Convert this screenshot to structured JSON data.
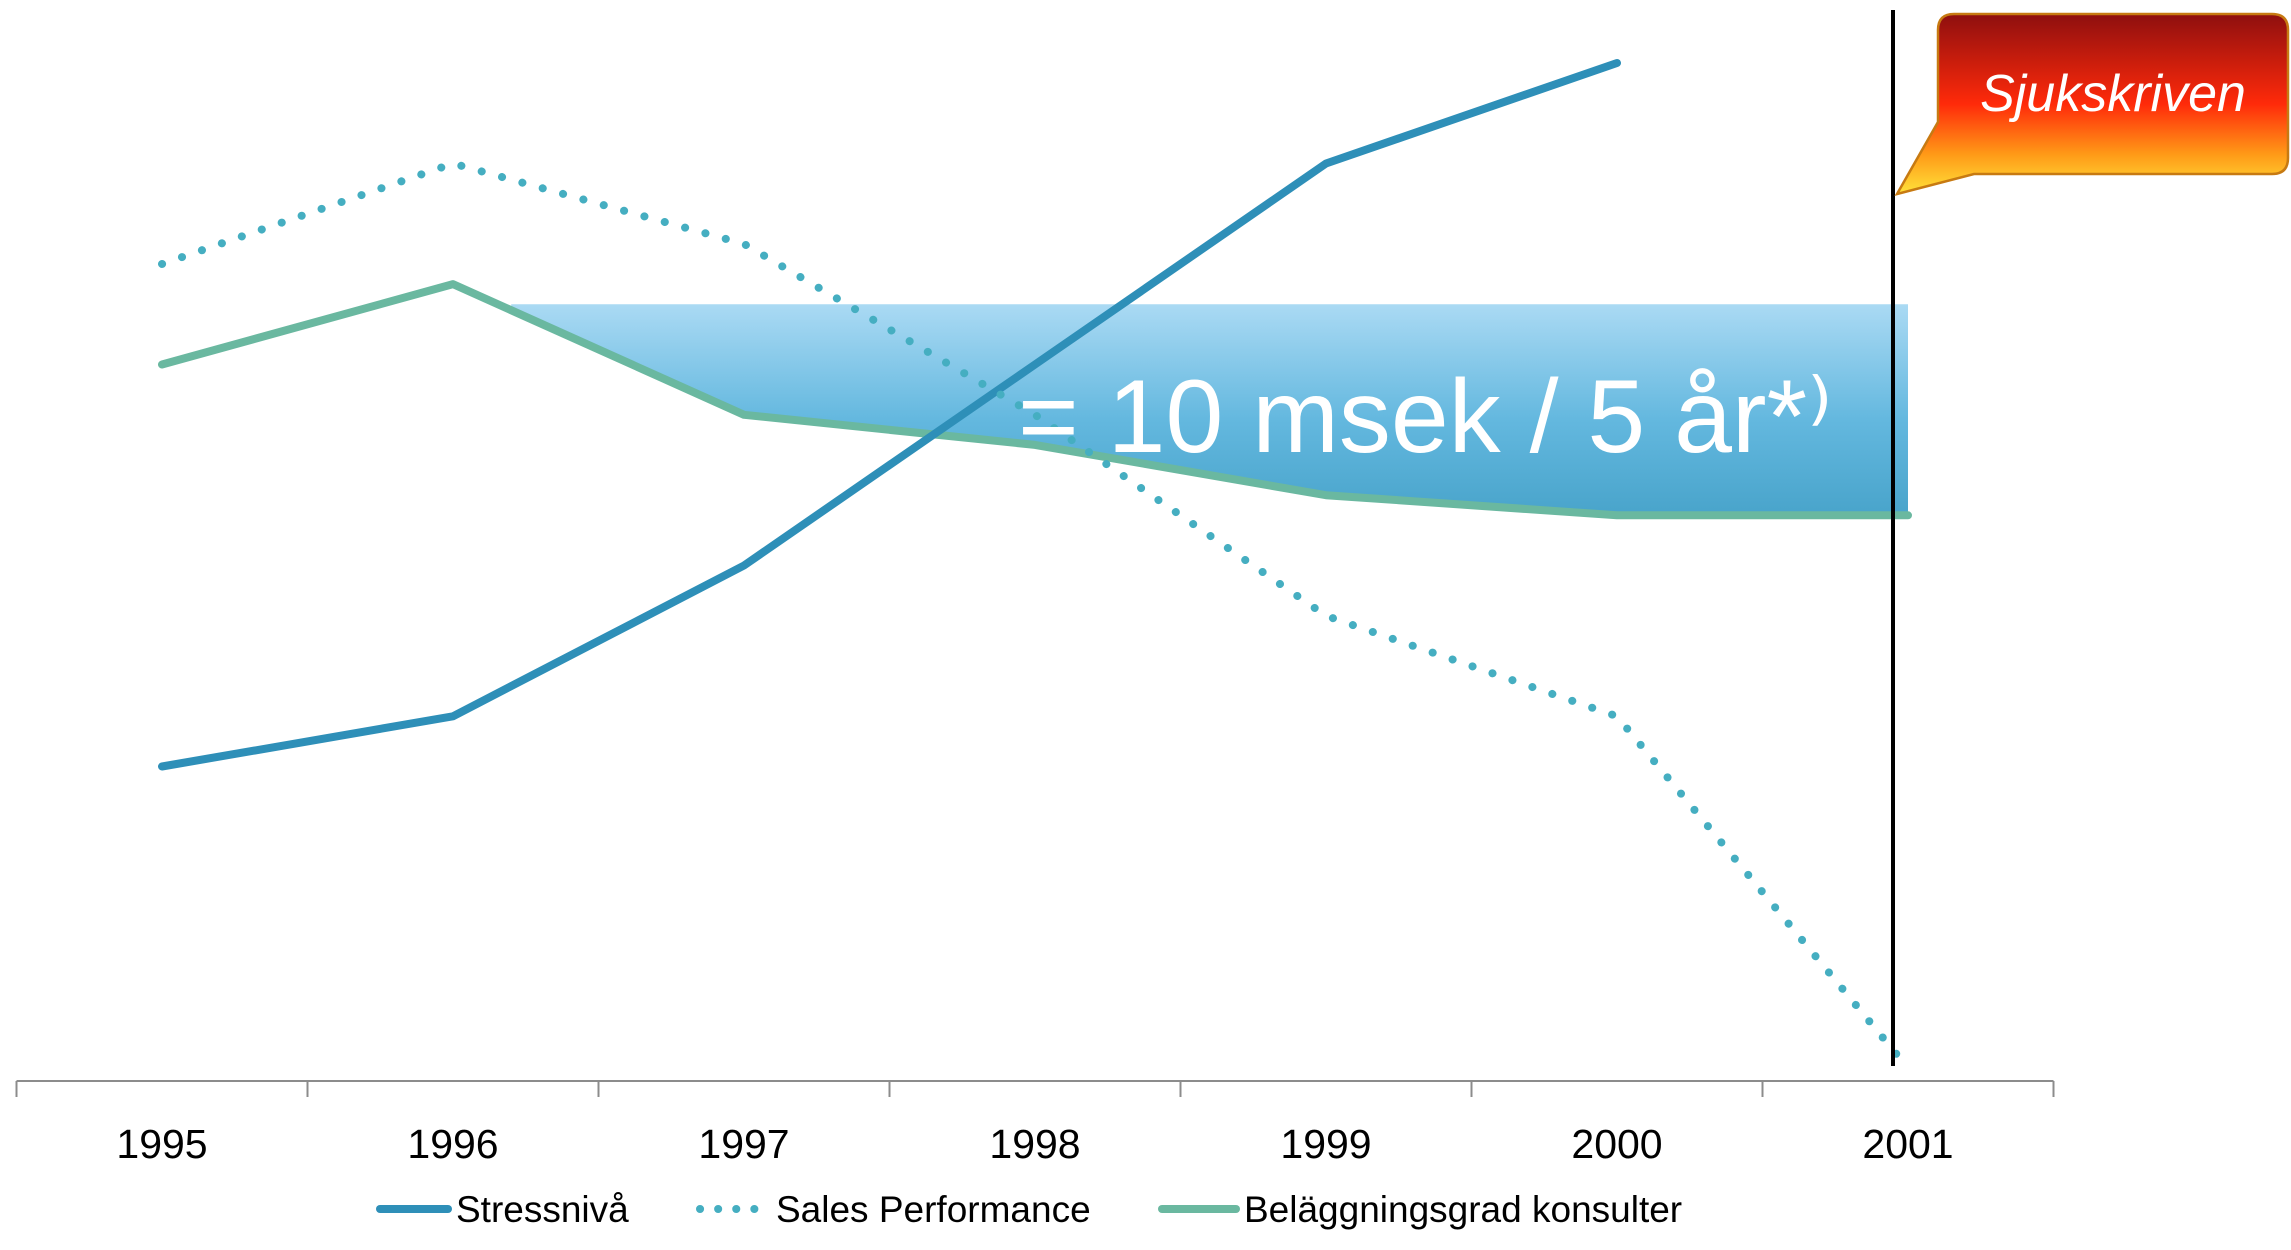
{
  "chart_data": {
    "type": "line",
    "categories": [
      "1995",
      "1996",
      "1997",
      "1998",
      "1999",
      "2000",
      "2001"
    ],
    "ylim": [
      0,
      100
    ],
    "grid": false,
    "legend_position": "bottom",
    "series": [
      {
        "name": "Stressnivå",
        "style": "solid",
        "color": "#2e8fb8",
        "values": [
          30,
          35,
          50,
          70,
          90,
          100,
          null
        ]
      },
      {
        "name": "Sales Performance",
        "style": "dotted",
        "color": "#45aec1",
        "values": [
          80,
          90,
          82,
          65,
          45,
          35,
          0
        ]
      },
      {
        "name": "Beläggningsgrad konsulter",
        "style": "solid",
        "color": "#6ab8a0",
        "values": [
          70,
          78,
          65,
          62,
          57,
          55,
          55
        ]
      }
    ],
    "marker_line": {
      "x": "2001",
      "color": "#000000"
    },
    "shaded_band": {
      "x_start": 1996.2,
      "x_end": 2001,
      "y_top": 76,
      "color": "#5bb8e0",
      "label": "= 10 msek / 5 år*⁾"
    },
    "callout": {
      "text": "Sjukskriven",
      "color_top": "#8e0f0f",
      "color_bottom": "#ffe23a",
      "text_color": "#ffffff"
    }
  }
}
